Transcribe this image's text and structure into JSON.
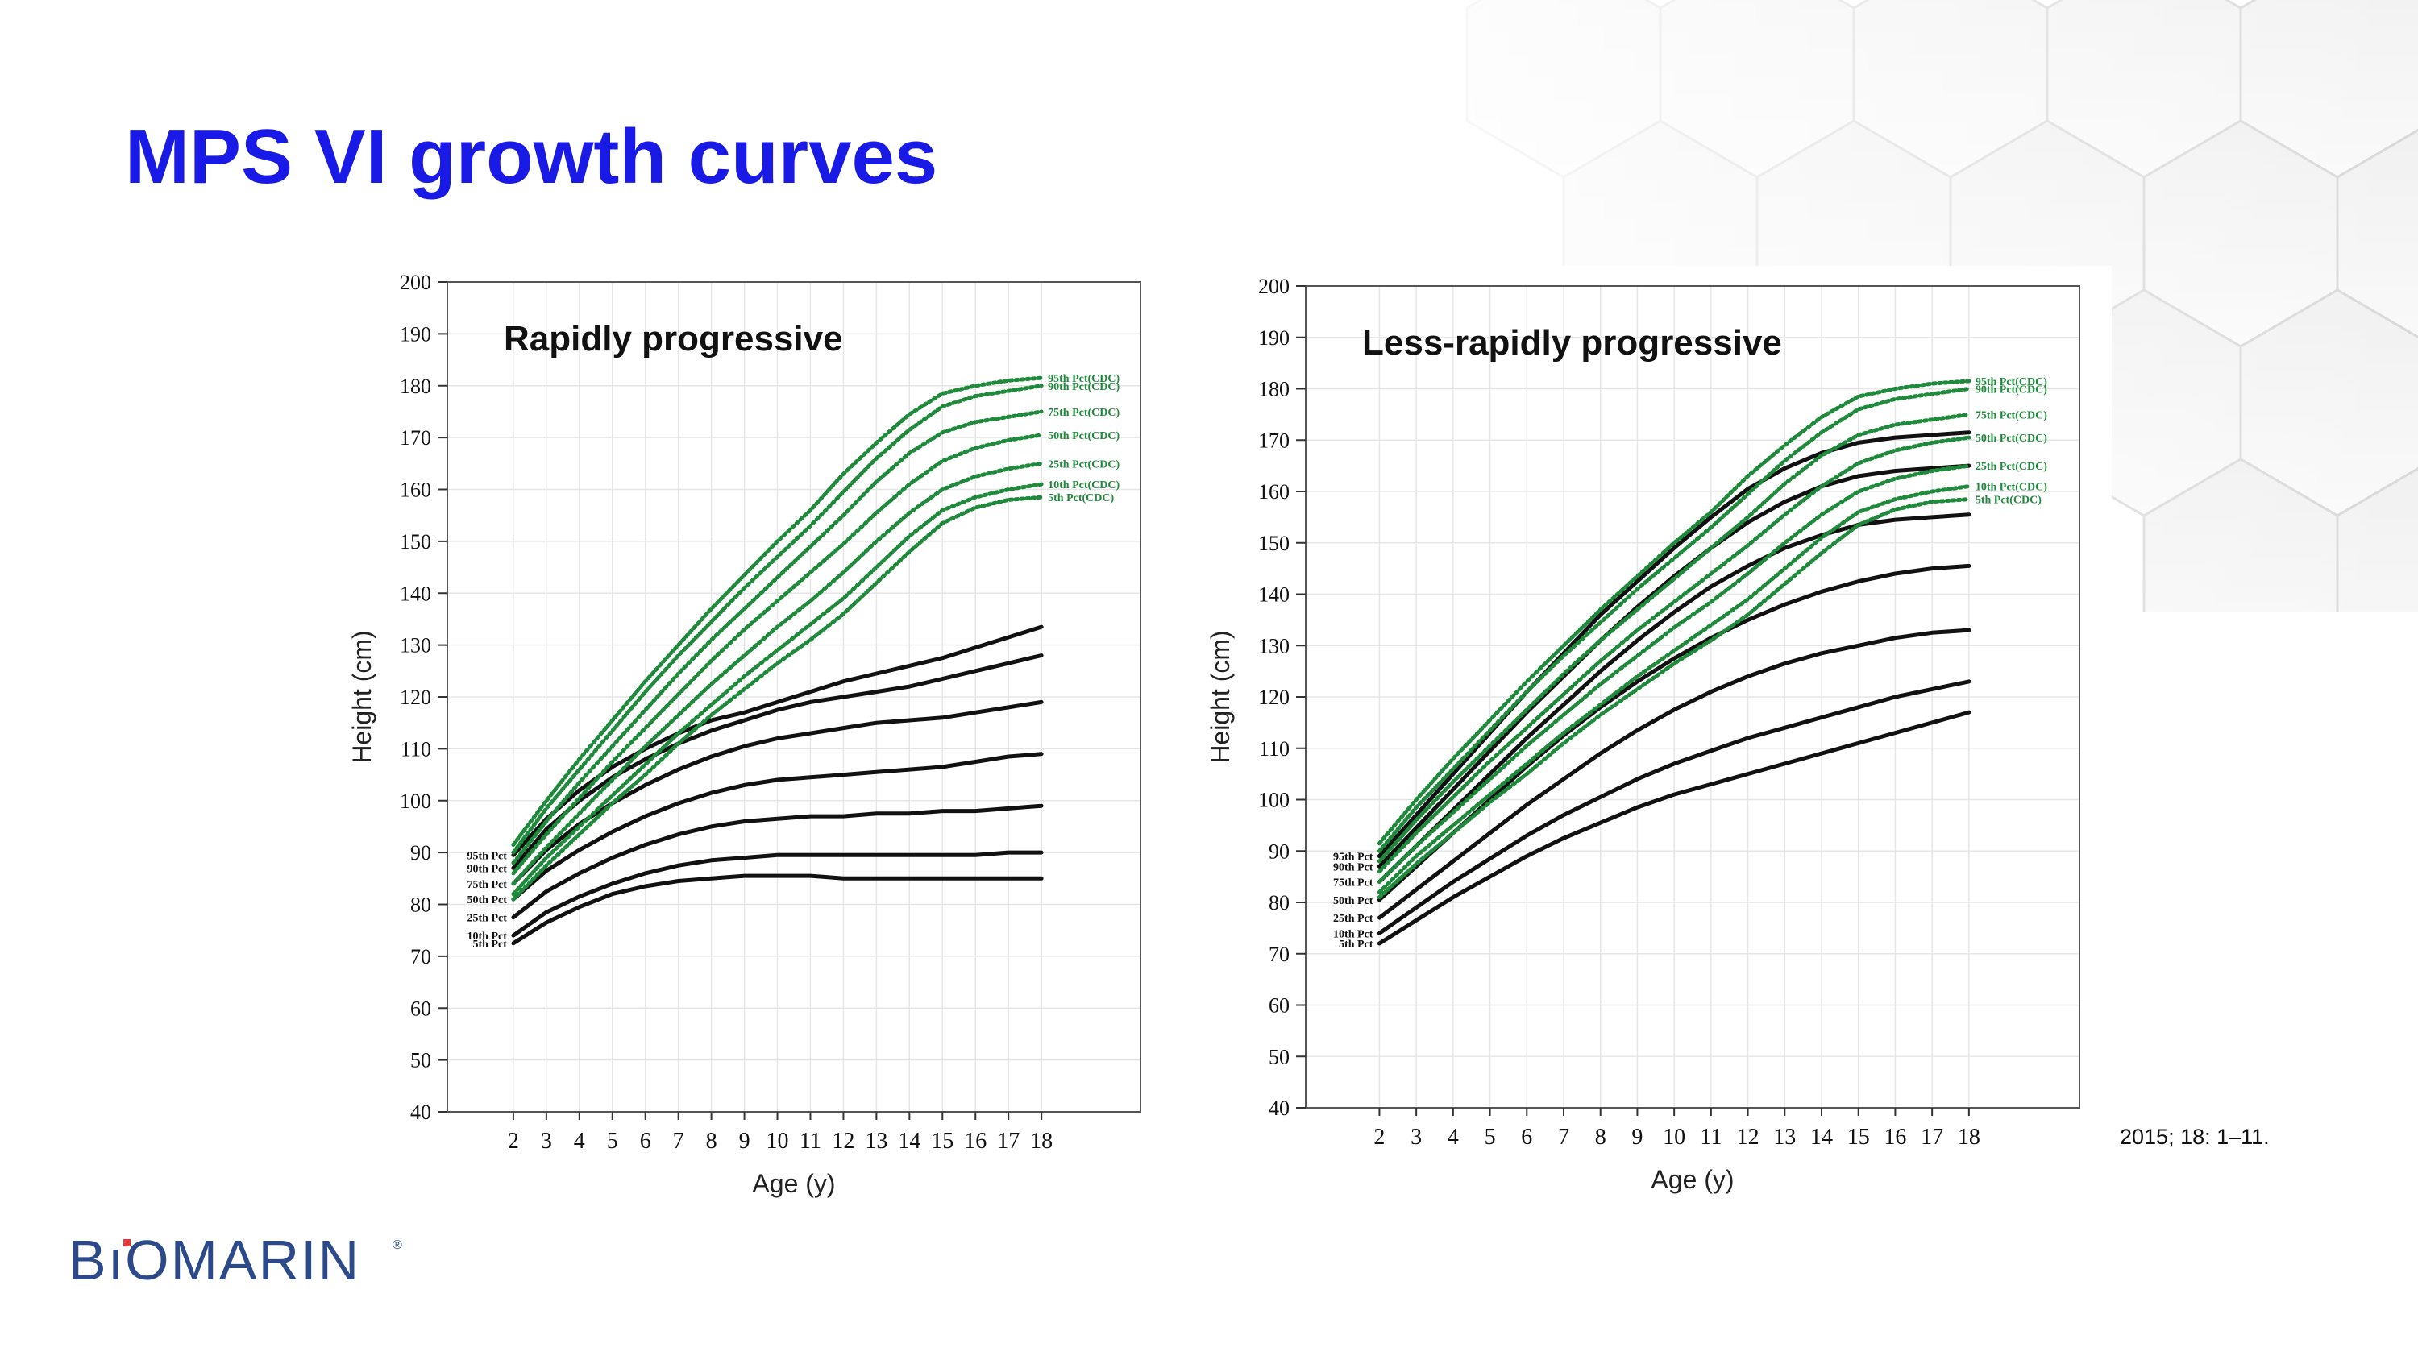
{
  "slide": {
    "title": "MPS VI growth curves",
    "citation": "2015; 18: 1–11.",
    "logo_text": "BıOMARIN",
    "logo_mark": "®"
  },
  "chart_data": [
    {
      "type": "line",
      "title": "Rapidly progressive",
      "xlabel": "Age (y)",
      "ylabel": "Height (cm)",
      "xlim": [
        0,
        21
      ],
      "ylim": [
        40,
        200
      ],
      "x_ticks": [
        2,
        3,
        4,
        5,
        6,
        7,
        8,
        9,
        10,
        11,
        12,
        13,
        14,
        15,
        16,
        17,
        18
      ],
      "y_ticks": [
        40,
        50,
        60,
        70,
        80,
        90,
        100,
        110,
        120,
        130,
        140,
        150,
        160,
        170,
        180,
        190,
        200
      ],
      "grid": true,
      "x": [
        2,
        3,
        4,
        5,
        6,
        7,
        8,
        9,
        10,
        11,
        12,
        13,
        14,
        15,
        16,
        17,
        18
      ],
      "series": [
        {
          "name": "95th Pct",
          "style": "mps",
          "values": [
            89.5,
            96.5,
            102,
            106.5,
            110,
            113,
            115.5,
            117,
            119,
            121,
            123,
            124.5,
            126,
            127.5,
            129.5,
            131.5,
            133.5
          ]
        },
        {
          "name": "90th Pct",
          "style": "mps",
          "values": [
            87,
            94.5,
            100,
            104.5,
            108,
            111,
            113.5,
            115.5,
            117.5,
            119,
            120,
            121,
            122,
            123.5,
            125,
            126.5,
            128
          ]
        },
        {
          "name": "75th Pct",
          "style": "mps",
          "values": [
            84,
            90.5,
            95.5,
            99.5,
            103,
            106,
            108.5,
            110.5,
            112,
            113,
            114,
            115,
            115.5,
            116,
            117,
            118,
            119
          ]
        },
        {
          "name": "50th Pct",
          "style": "mps",
          "values": [
            81,
            86.5,
            90.5,
            94,
            97,
            99.5,
            101.5,
            103,
            104,
            104.5,
            105,
            105.5,
            106,
            106.5,
            107.5,
            108.5,
            109
          ]
        },
        {
          "name": "25th Pct",
          "style": "mps",
          "values": [
            77.5,
            82.5,
            86,
            89,
            91.5,
            93.5,
            95,
            96,
            96.5,
            97,
            97,
            97.5,
            97.5,
            98,
            98,
            98.5,
            99
          ]
        },
        {
          "name": "10th Pct",
          "style": "mps",
          "values": [
            74,
            78.5,
            81.5,
            84,
            86,
            87.5,
            88.5,
            89,
            89.5,
            89.5,
            89.5,
            89.5,
            89.5,
            89.5,
            89.5,
            90,
            90
          ]
        },
        {
          "name": "5th Pct",
          "style": "mps",
          "values": [
            72.5,
            76.5,
            79.5,
            82,
            83.5,
            84.5,
            85,
            85.5,
            85.5,
            85.5,
            85,
            85,
            85,
            85,
            85,
            85,
            85
          ]
        },
        {
          "name": "95th Pct(CDC)",
          "style": "cdc",
          "values": [
            91.5,
            100,
            108,
            115.5,
            123,
            130,
            137,
            143.5,
            150,
            156,
            163,
            169,
            174.5,
            178.5,
            180,
            181,
            181.5
          ]
        },
        {
          "name": "90th Pct(CDC)",
          "style": "cdc",
          "values": [
            90,
            98.5,
            106,
            113.5,
            121,
            128,
            134.5,
            141,
            147,
            153,
            159.5,
            166,
            171.5,
            176,
            178,
            179,
            180
          ]
        },
        {
          "name": "75th Pct(CDC)",
          "style": "cdc",
          "values": [
            88,
            96,
            103.5,
            110.5,
            117.5,
            124.5,
            131,
            137,
            143,
            149,
            155,
            161.5,
            167,
            171,
            173,
            174,
            175
          ]
        },
        {
          "name": "50th Pct(CDC)",
          "style": "cdc",
          "values": [
            86,
            93.5,
            100.5,
            107.5,
            114,
            120.5,
            127,
            133,
            138.5,
            144,
            149.5,
            155.5,
            161,
            165.5,
            168,
            169.5,
            170.5
          ]
        },
        {
          "name": "25th Pct(CDC)",
          "style": "cdc",
          "values": [
            84,
            91,
            97.5,
            104,
            110.5,
            116.5,
            122.5,
            128,
            133.5,
            138.5,
            144,
            150,
            155.5,
            160,
            162.5,
            164,
            165
          ]
        },
        {
          "name": "10th Pct(CDC)",
          "style": "cdc",
          "values": [
            82,
            89,
            95,
            101,
            107,
            113,
            118.5,
            124,
            129,
            134,
            139,
            145,
            151,
            156,
            158.5,
            160,
            161
          ]
        },
        {
          "name": "5th Pct(CDC)",
          "style": "cdc",
          "values": [
            81,
            87.5,
            93.5,
            99.5,
            105,
            111,
            116.5,
            121.5,
            126.5,
            131,
            136,
            142,
            148,
            153.5,
            156.5,
            158,
            158.5
          ]
        }
      ]
    },
    {
      "type": "line",
      "title": "Less-rapidly progressive",
      "xlabel": "Age (y)",
      "ylabel": "Height (cm)",
      "xlim": [
        0,
        21
      ],
      "ylim": [
        40,
        200
      ],
      "x_ticks": [
        2,
        3,
        4,
        5,
        6,
        7,
        8,
        9,
        10,
        11,
        12,
        13,
        14,
        15,
        16,
        17,
        18
      ],
      "y_ticks": [
        40,
        50,
        60,
        70,
        80,
        90,
        100,
        110,
        120,
        130,
        140,
        150,
        160,
        170,
        180,
        190,
        200
      ],
      "grid": true,
      "x": [
        2,
        3,
        4,
        5,
        6,
        7,
        8,
        9,
        10,
        11,
        12,
        13,
        14,
        15,
        16,
        17,
        18
      ],
      "series": [
        {
          "name": "95th Pct",
          "style": "mps",
          "values": [
            89,
            97,
            105,
            113,
            121,
            128.5,
            136,
            142.5,
            149,
            155,
            160.5,
            164.5,
            167.5,
            169.5,
            170.5,
            171,
            171.5
          ]
        },
        {
          "name": "90th Pct",
          "style": "mps",
          "values": [
            87,
            94.5,
            102,
            109.5,
            117,
            124,
            131,
            137.5,
            143.5,
            149,
            154,
            158,
            161,
            163,
            164,
            164.5,
            165
          ]
        },
        {
          "name": "75th Pct",
          "style": "mps",
          "values": [
            84,
            91,
            98,
            105,
            112,
            118.5,
            125,
            131,
            136.5,
            141.5,
            145.5,
            149,
            151.5,
            153.5,
            154.5,
            155,
            155.5
          ]
        },
        {
          "name": "50th Pct",
          "style": "mps",
          "values": [
            80.5,
            87,
            93.5,
            100,
            106.5,
            112.5,
            118,
            123,
            127.5,
            131.5,
            135,
            138,
            140.5,
            142.5,
            144,
            145,
            145.5
          ]
        },
        {
          "name": "25th Pct",
          "style": "mps",
          "values": [
            77,
            82.5,
            88,
            93.5,
            99,
            104,
            109,
            113.5,
            117.5,
            121,
            124,
            126.5,
            128.5,
            130,
            131.5,
            132.5,
            133
          ]
        },
        {
          "name": "10th Pct",
          "style": "mps",
          "values": [
            74,
            79,
            84,
            88.5,
            93,
            97,
            100.5,
            104,
            107,
            109.5,
            112,
            114,
            116,
            118,
            120,
            121.5,
            123
          ]
        },
        {
          "name": "5th Pct",
          "style": "mps",
          "values": [
            72,
            76.5,
            81,
            85,
            89,
            92.5,
            95.5,
            98.5,
            101,
            103,
            105,
            107,
            109,
            111,
            113,
            115,
            117
          ]
        },
        {
          "name": "95th Pct(CDC)",
          "style": "cdc",
          "values": [
            91.5,
            100,
            108,
            115.5,
            123,
            130,
            137,
            143.5,
            150,
            156,
            163,
            169,
            174.5,
            178.5,
            180,
            181,
            181.5
          ]
        },
        {
          "name": "90th Pct(CDC)",
          "style": "cdc",
          "values": [
            90,
            98.5,
            106,
            113.5,
            121,
            128,
            134.5,
            141,
            147,
            153,
            159.5,
            166,
            171.5,
            176,
            178,
            179,
            180
          ]
        },
        {
          "name": "75th Pct(CDC)",
          "style": "cdc",
          "values": [
            88,
            96,
            103.5,
            110.5,
            117.5,
            124.5,
            131,
            137,
            143,
            149,
            155,
            161.5,
            167,
            171,
            173,
            174,
            175
          ]
        },
        {
          "name": "50th Pct(CDC)",
          "style": "cdc",
          "values": [
            86,
            93.5,
            100.5,
            107.5,
            114,
            120.5,
            127,
            133,
            138.5,
            144,
            149.5,
            155.5,
            161,
            165.5,
            168,
            169.5,
            170.5
          ]
        },
        {
          "name": "25th Pct(CDC)",
          "style": "cdc",
          "values": [
            84,
            91,
            97.5,
            104,
            110.5,
            116.5,
            122.5,
            128,
            133.5,
            138.5,
            144,
            150,
            155.5,
            160,
            162.5,
            164,
            165
          ]
        },
        {
          "name": "10th Pct(CDC)",
          "style": "cdc",
          "values": [
            82,
            89,
            95,
            101,
            107,
            113,
            118.5,
            124,
            129,
            134,
            139,
            145,
            151,
            156,
            158.5,
            160,
            161
          ]
        },
        {
          "name": "5th Pct(CDC)",
          "style": "cdc",
          "values": [
            81,
            87.5,
            93.5,
            99.5,
            105,
            111,
            116.5,
            121.5,
            126.5,
            131,
            136,
            142,
            148,
            153.5,
            156.5,
            158,
            158.5
          ]
        }
      ]
    }
  ],
  "colors": {
    "title": "#1a1ae6",
    "cdc_curve": "#1f8a3c",
    "mps_curve": "#111111",
    "logo": "#2c4a8a",
    "grid": "#e6e6e6"
  }
}
